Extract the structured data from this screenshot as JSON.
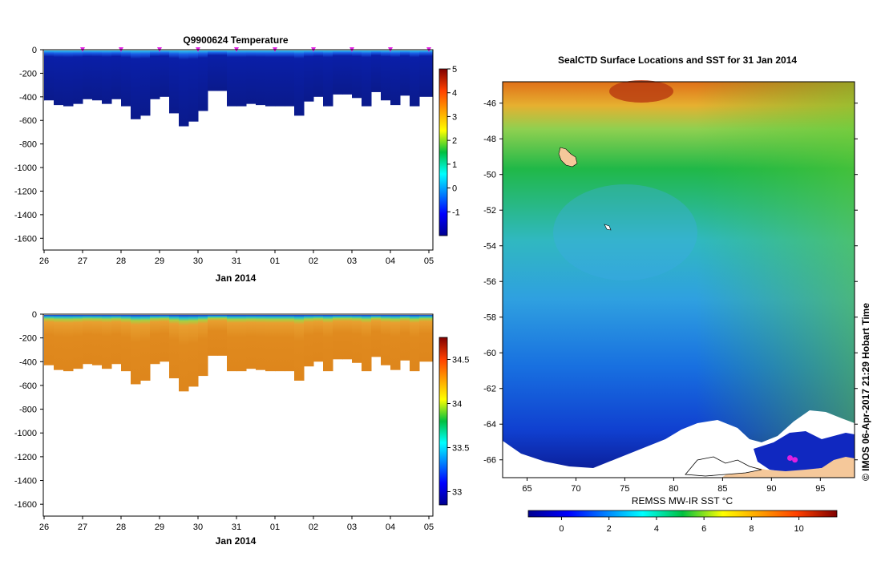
{
  "chart_data": [
    {
      "type": "heatmap",
      "title": "Q9900624  Temperature",
      "xlabel": "Jan 2014",
      "ylabel": "",
      "x_ticks": [
        "26",
        "27",
        "28",
        "29",
        "30",
        "31",
        "01",
        "02",
        "03",
        "04",
        "05"
      ],
      "y_ticks": [
        0,
        -200,
        -400,
        -600,
        -800,
        -1000,
        -1200,
        -1400,
        -1600
      ],
      "ylim": [
        -1700,
        0
      ],
      "profile_times_days": [
        0.0,
        0.25,
        0.5,
        0.75,
        1.0,
        1.25,
        1.5,
        1.75,
        2.0,
        2.25,
        2.5,
        2.75,
        3.0,
        3.25,
        3.5,
        3.75,
        4.0,
        4.25,
        4.5,
        4.75,
        5.0,
        5.25,
        5.5,
        5.75,
        6.0,
        6.25,
        6.5,
        6.75,
        7.0,
        7.25,
        7.5,
        7.75,
        8.0,
        8.25,
        8.5,
        8.75,
        9.0,
        9.25,
        9.5,
        9.75
      ],
      "profile_max_depth_m": [
        430,
        470,
        480,
        460,
        420,
        430,
        460,
        420,
        480,
        590,
        560,
        420,
        400,
        540,
        650,
        610,
        520,
        350,
        350,
        480,
        480,
        460,
        470,
        480,
        480,
        480,
        560,
        440,
        400,
        480,
        380,
        380,
        410,
        480,
        360,
        430,
        470,
        390,
        480,
        400
      ],
      "surface_marker_days": [
        1,
        2,
        3,
        4,
        5,
        6,
        7,
        8,
        9,
        10
      ],
      "colorbar": {
        "ticks": [
          5,
          4,
          3,
          2,
          1,
          0,
          -1
        ],
        "range": [
          -2,
          5
        ]
      }
    },
    {
      "type": "heatmap",
      "title": "",
      "xlabel": "Jan 2014",
      "ylabel": "",
      "x_ticks": [
        "26",
        "27",
        "28",
        "29",
        "30",
        "31",
        "01",
        "02",
        "03",
        "04",
        "05"
      ],
      "y_ticks": [
        0,
        -200,
        -400,
        -600,
        -800,
        -1000,
        -1200,
        -1400,
        -1600
      ],
      "ylim": [
        -1700,
        0
      ],
      "profile_max_depth_m": [
        430,
        470,
        480,
        460,
        420,
        430,
        460,
        420,
        480,
        590,
        560,
        420,
        400,
        540,
        650,
        610,
        520,
        350,
        350,
        480,
        480,
        460,
        470,
        480,
        480,
        480,
        560,
        440,
        400,
        480,
        380,
        380,
        410,
        480,
        360,
        430,
        470,
        390,
        480,
        400
      ],
      "colorbar": {
        "ticks": [
          34.5,
          34,
          33.5,
          33
        ],
        "range": [
          32.85,
          34.75
        ]
      }
    },
    {
      "type": "map",
      "title": "SealCTD Surface Locations and SST for 31 Jan 2014",
      "x_ticks": [
        65,
        70,
        75,
        80,
        85,
        90,
        95
      ],
      "y_ticks": [
        -46,
        -48,
        -50,
        -52,
        -54,
        -56,
        -58,
        -60,
        -62,
        -64,
        -66
      ],
      "xlim": [
        62.5,
        98.5
      ],
      "ylim": [
        -67,
        -44.8
      ],
      "colorbar": {
        "label": "REMSS MW-IR SST °C",
        "ticks": [
          0,
          2,
          4,
          6,
          8,
          10
        ],
        "range": [
          -1.4,
          11.6
        ]
      },
      "seal_locations": [
        [
          91.9,
          -65.9
        ],
        [
          92.4,
          -66.0
        ]
      ],
      "credit": "© IMOS 06-Apr-2017 21:29 Hobart Time"
    }
  ],
  "colors": {
    "deep_blue": "#0a1a8c",
    "orange": "#e08a1e",
    "land": "#f5c89a",
    "marker": "#e020e0"
  }
}
